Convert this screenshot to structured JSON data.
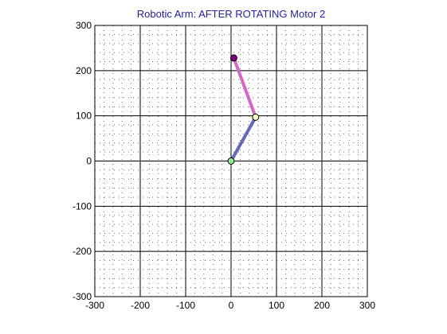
{
  "chart_data": {
    "type": "line",
    "title": "Robotic Arm: AFTER ROTATING Motor 2",
    "xlabel": "",
    "ylabel": "",
    "xlim": [
      -300,
      300
    ],
    "ylim": [
      -300,
      300
    ],
    "x_ticks": [
      "-300",
      "-200",
      "-100",
      "0",
      "100",
      "200",
      "300"
    ],
    "y_ticks": [
      "300",
      "200",
      "100",
      "0",
      "-100",
      "-200",
      "-300"
    ],
    "major_grid": true,
    "minor_grid": "dotted",
    "series": [
      {
        "x": [
          0,
          54
        ],
        "y": [
          0,
          97
        ],
        "color": "#6666bb"
      },
      {
        "x": [
          54,
          6
        ],
        "y": [
          97,
          228
        ],
        "color": "#d966c4"
      }
    ],
    "joints": [
      {
        "x": 0,
        "y": 0,
        "color": "#90ee90"
      },
      {
        "x": 54,
        "y": 97,
        "color": "#ffffc0"
      },
      {
        "x": 6,
        "y": 228,
        "color": "#800080"
      }
    ],
    "colors": {
      "title": "#1f1fb0",
      "axes": "#000000"
    }
  }
}
